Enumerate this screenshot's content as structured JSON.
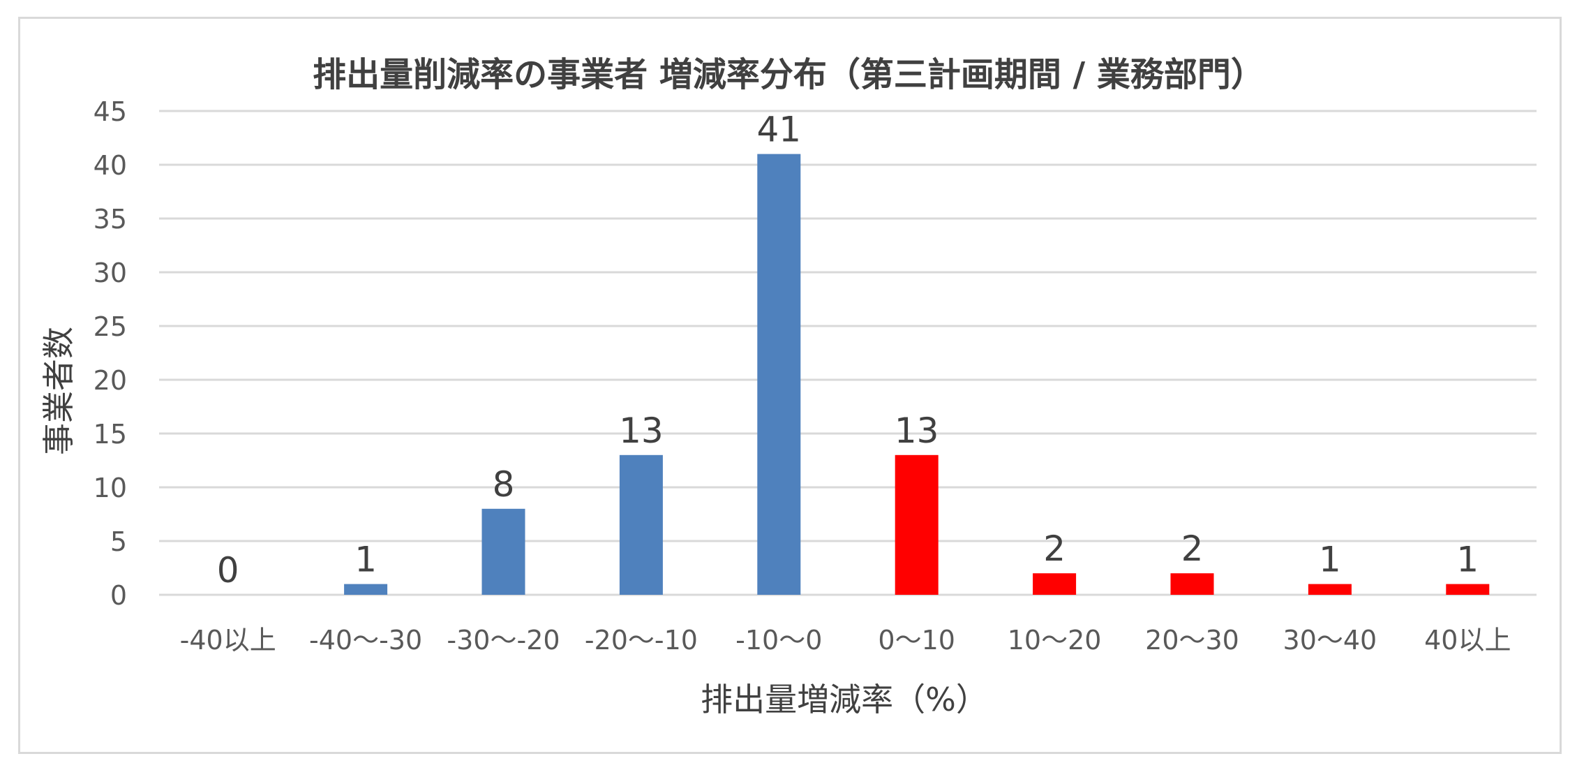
{
  "chart_data": {
    "type": "bar",
    "title": "排出量削減率の事業者 増減率分布（第三計画期間 / 業務部門）",
    "xlabel": "排出量増減率（%）",
    "ylabel": "事業者数",
    "categories": [
      "-40以上",
      "-40〜-30",
      "-30〜-20",
      "-20〜-10",
      "-10〜0",
      "0〜10",
      "10〜20",
      "20〜30",
      "30〜40",
      "40以上"
    ],
    "values": [
      0,
      1,
      8,
      13,
      41,
      13,
      2,
      2,
      1,
      1
    ],
    "bar_colors": [
      "#4f81bd",
      "#4f81bd",
      "#4f81bd",
      "#4f81bd",
      "#4f81bd",
      "#ff0000",
      "#ff0000",
      "#ff0000",
      "#ff0000",
      "#ff0000"
    ],
    "ylim": [
      0,
      45
    ],
    "yticks": [
      0,
      5,
      10,
      15,
      20,
      25,
      30,
      35,
      40,
      45
    ],
    "grid": true,
    "data_labels": true,
    "legend": "none"
  }
}
